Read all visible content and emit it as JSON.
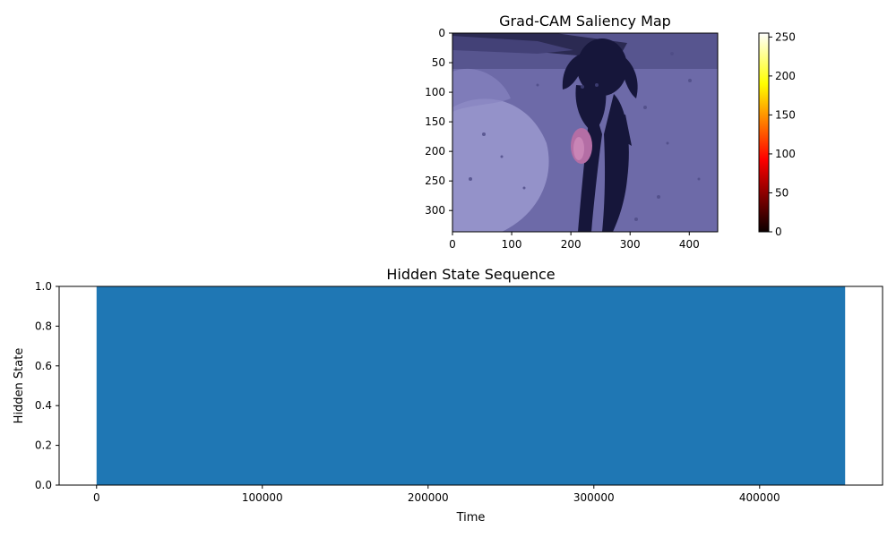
{
  "chart_data": [
    {
      "type": "heatmap",
      "title": "Grad-CAM Saliency Map",
      "image_extent": {
        "x": [
          0,
          448
        ],
        "y": [
          0,
          336
        ]
      },
      "xticks": [
        0,
        100,
        200,
        300,
        400
      ],
      "yticks": [
        0,
        50,
        100,
        150,
        200,
        250,
        300
      ],
      "y_inverted": true,
      "overlay_color": "#3c3cb4",
      "colorbar": {
        "colormap": "hot",
        "range": [
          0,
          255
        ],
        "ticks": [
          0,
          50,
          100,
          150,
          200,
          250
        ]
      }
    },
    {
      "type": "bar",
      "title": "Hidden State Sequence",
      "xlabel": "Time",
      "ylabel": "Hidden State",
      "x": [
        0,
        451584
      ],
      "values": [
        1,
        1
      ],
      "xlim": [
        -22579,
        474163
      ],
      "ylim": [
        0,
        1
      ],
      "xticks": [
        0,
        100000,
        200000,
        300000,
        400000
      ],
      "yticks": [
        0.0,
        0.2,
        0.4,
        0.6,
        0.8,
        1.0
      ],
      "ytick_labels": [
        "0.0",
        "0.2",
        "0.4",
        "0.6",
        "0.8",
        "1.0"
      ],
      "color": "#1f77b4"
    }
  ]
}
